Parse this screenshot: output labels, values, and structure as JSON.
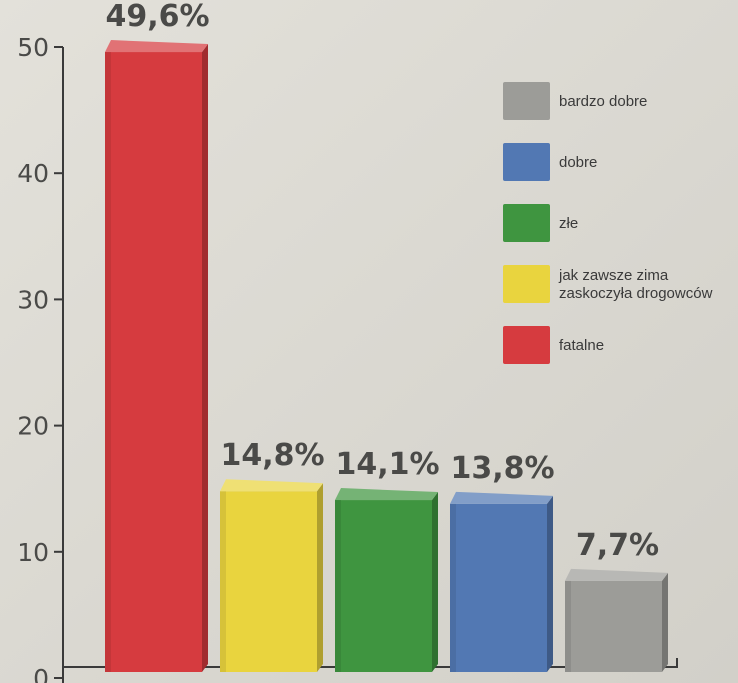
{
  "colors": {
    "background": "#dcdad3",
    "axis": "#3a3a3a",
    "text": "#4a4a48"
  },
  "chart_data": {
    "type": "bar",
    "title": "",
    "xlabel": "",
    "ylabel": "",
    "ylim": [
      0,
      50
    ],
    "y_ticks": [
      0,
      10,
      20,
      30,
      40,
      50
    ],
    "grid": false,
    "legend_position": "top-right",
    "bars": [
      {
        "name": "fatalne",
        "value": 49.6,
        "label": "49,6%",
        "color": "#d63b3f"
      },
      {
        "name": "jak zawsze zima zaskoczyła drogowców",
        "value": 14.8,
        "label": "14,8%",
        "color": "#e9d43e"
      },
      {
        "name": "złe",
        "value": 14.1,
        "label": "14,1%",
        "color": "#3f9540"
      },
      {
        "name": "dobre",
        "value": 13.8,
        "label": "13,8%",
        "color": "#5278b3"
      },
      {
        "name": "bardzo dobre",
        "value": 7.7,
        "label": "7,7%",
        "color": "#9c9c98"
      }
    ],
    "legend": [
      {
        "label_lines": [
          "bardzo dobre"
        ],
        "color": "#9c9c98"
      },
      {
        "label_lines": [
          "dobre"
        ],
        "color": "#5278b3"
      },
      {
        "label_lines": [
          "złe"
        ],
        "color": "#3f9540"
      },
      {
        "label_lines": [
          "jak zawsze zima",
          "zaskoczyła drogowców"
        ],
        "color": "#e9d43e"
      },
      {
        "label_lines": [
          "fatalne"
        ],
        "color": "#d63b3f"
      }
    ]
  }
}
